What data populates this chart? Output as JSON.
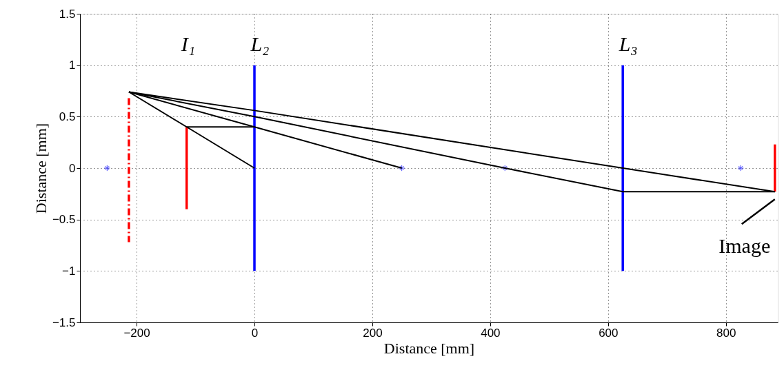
{
  "chart_data": {
    "type": "line",
    "xlabel": "Distance [mm]",
    "ylabel": "Distance [mm]",
    "xlim": [
      -296,
      888
    ],
    "ylim": [
      -1.5,
      1.5
    ],
    "xticks": [
      -200,
      0,
      200,
      400,
      600,
      800
    ],
    "yticks": [
      -1.5,
      -1,
      -0.5,
      0,
      0.5,
      1,
      1.5
    ],
    "grid": true,
    "series": [
      {
        "color": "#ff0000",
        "line_style": "dashed",
        "x": [
          -213,
          -213
        ],
        "values": [
          0.68,
          -0.72
        ]
      },
      {
        "color": "#ff0000",
        "line_style": "solid",
        "x": [
          -115,
          -115
        ],
        "values": [
          0.4,
          -0.4
        ]
      },
      {
        "color": "#0000ff",
        "line_style": "solid",
        "x": [
          0,
          0
        ],
        "values": [
          1,
          -1
        ]
      },
      {
        "color": "#0000ff",
        "line_style": "solid",
        "x": [
          625,
          625
        ],
        "values": [
          1,
          -1
        ]
      },
      {
        "color": "#ff0000",
        "line_style": "solid",
        "x": [
          883,
          883
        ],
        "values": [
          0.23,
          -0.23
        ]
      },
      {
        "type": "scatter",
        "color": "#0000ff",
        "marker": "cross",
        "x": [
          -250,
          250,
          425,
          825
        ],
        "values": [
          0,
          0,
          0,
          0
        ]
      },
      {
        "color": "#000000",
        "line_style": "solid",
        "x": [
          -213,
          0,
          625,
          883
        ],
        "values": [
          0.74,
          0.56,
          0,
          -0.23
        ]
      },
      {
        "color": "#000000",
        "line_style": "solid",
        "x": [
          -213,
          0,
          425,
          625,
          883
        ],
        "values": [
          0.74,
          0.5,
          0,
          -0.23,
          -0.23
        ]
      },
      {
        "color": "#000000",
        "line_style": "solid",
        "x": [
          -213,
          0,
          250
        ],
        "values": [
          0.74,
          0.4,
          0
        ]
      },
      {
        "color": "#000000",
        "line_style": "solid",
        "x": [
          -213,
          -115,
          0
        ],
        "values": [
          0.74,
          0.4,
          0
        ]
      },
      {
        "color": "#000000",
        "line_style": "solid",
        "x": [
          -115,
          0
        ],
        "values": [
          0.4,
          0.4
        ]
      }
    ],
    "annotations": [
      "I₁",
      {
        "text": "L₂",
        "x": 0,
        "y": 1
      },
      {
        "text": "L₃",
        "x": 625,
        "y": 1
      },
      {
        "text": "Image",
        "x": 883,
        "y": -0.23
      }
    ]
  }
}
